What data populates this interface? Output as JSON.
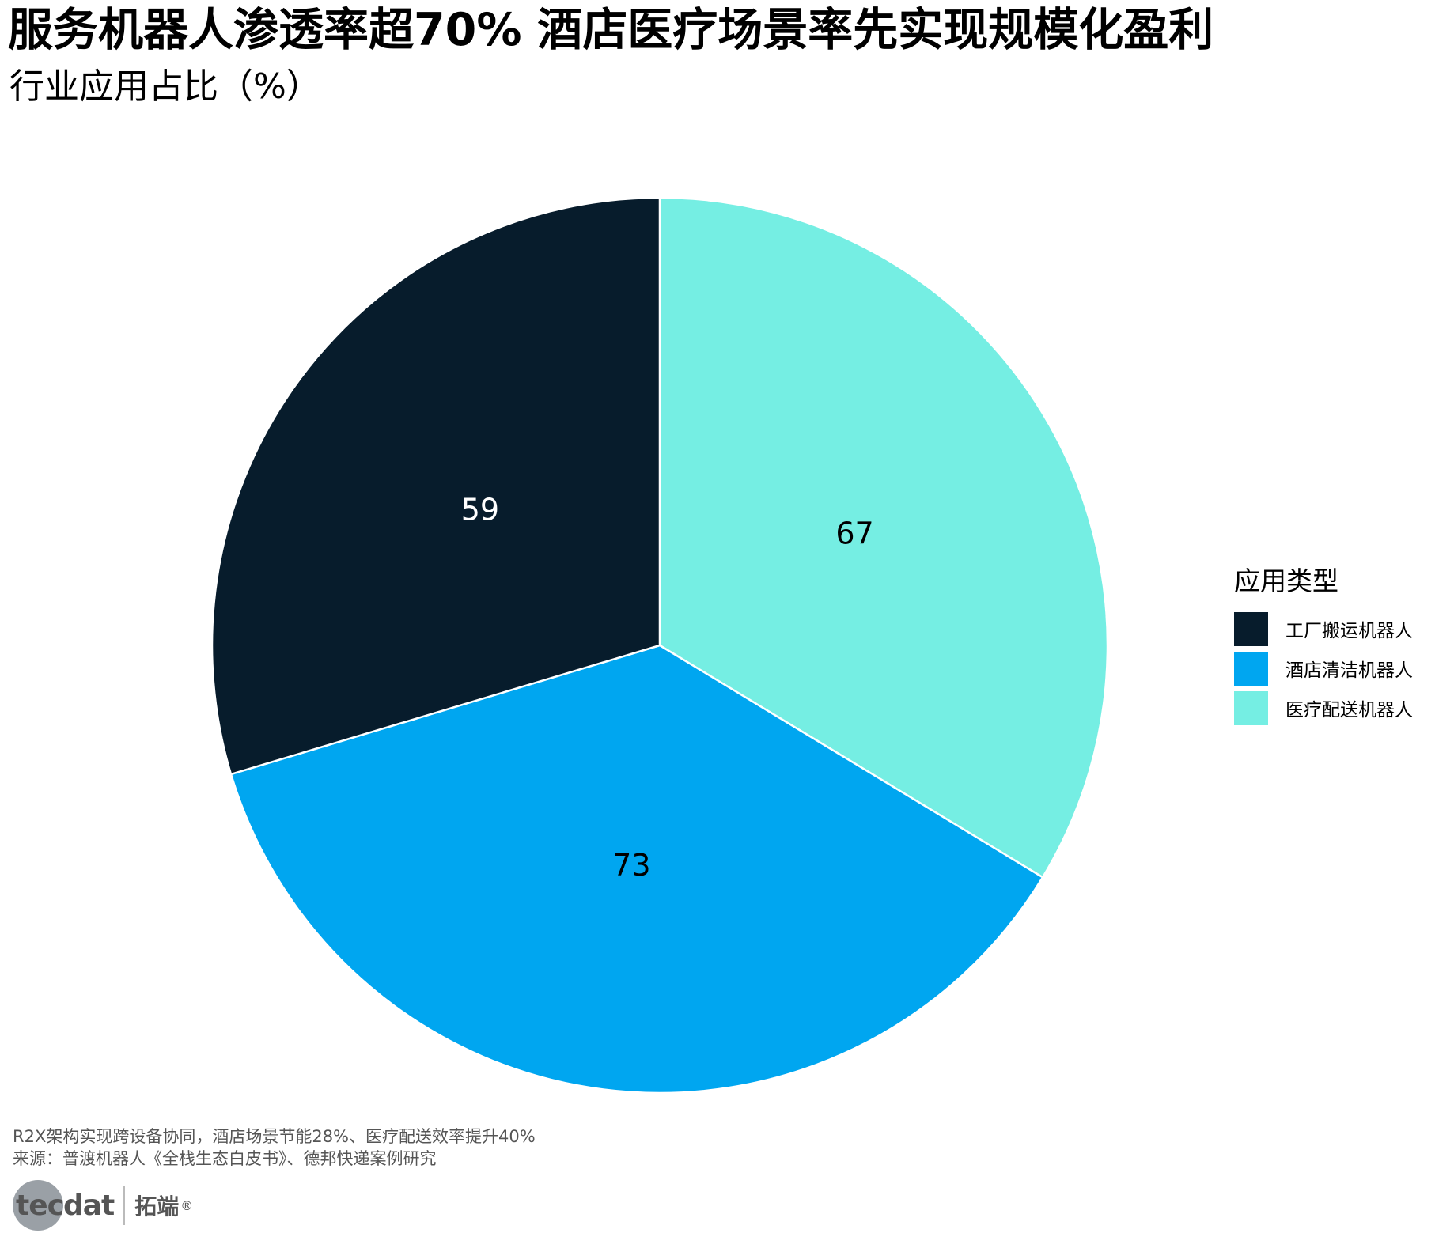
{
  "title": "服务机器人渗透率超70%  酒店医疗场景率先实现规模化盈利",
  "subtitle": "行业应用占比（%）",
  "chart_data": {
    "type": "pie",
    "categories": [
      "工厂搬运机器人",
      "酒店清洁机器人",
      "医疗配送机器人"
    ],
    "values": [
      59,
      73,
      67
    ],
    "colors": [
      "#071C2C",
      "#00A6F0",
      "#75EEE3"
    ],
    "label_colors": [
      "#ffffff",
      "#000000",
      "#000000"
    ],
    "legend_title": "应用类型",
    "legend_position": "right"
  },
  "note": "R2X架构实现跨设备协同，酒店场景节能28%、医疗配送效率提升40%",
  "source": "来源：普渡机器人《全栈生态白皮书》、德邦快递案例研究",
  "logo": {
    "text": "tecdat",
    "cn": "拓端",
    "reg": "®"
  }
}
